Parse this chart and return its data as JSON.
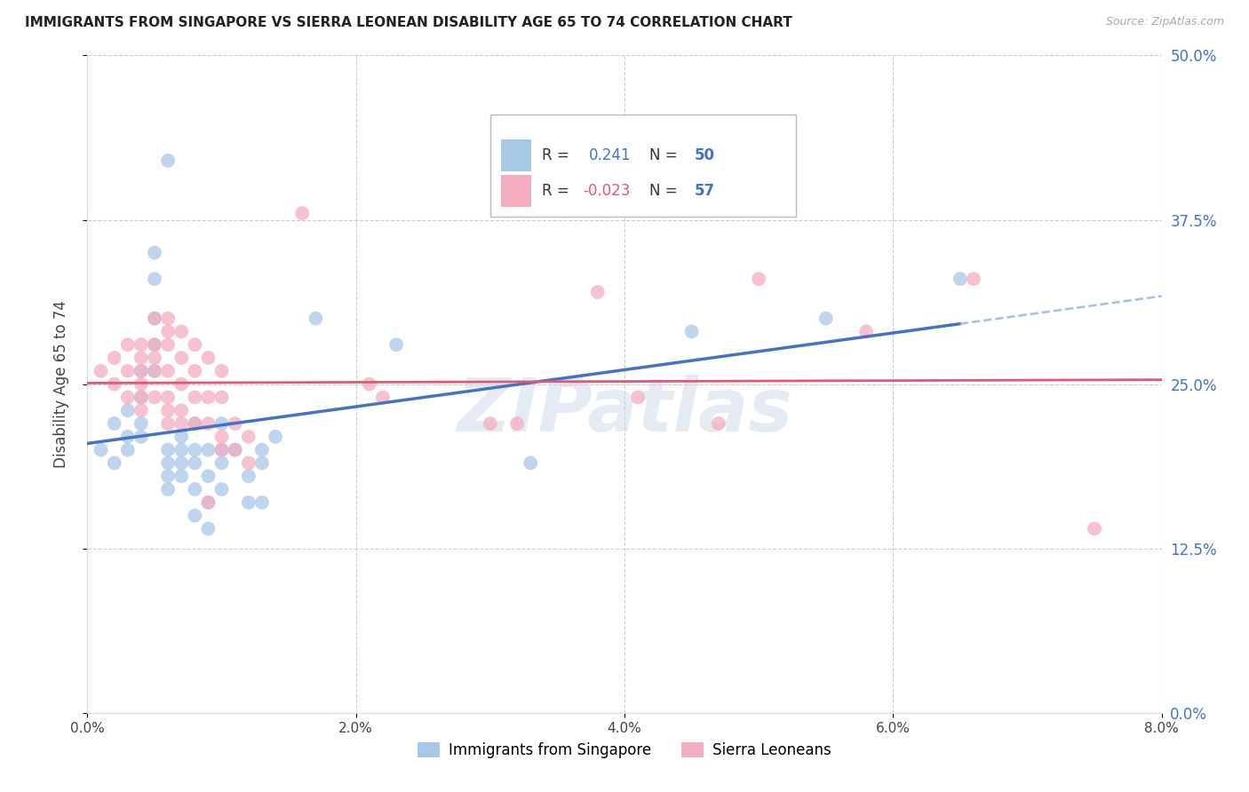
{
  "title": "IMMIGRANTS FROM SINGAPORE VS SIERRA LEONEAN DISABILITY AGE 65 TO 74 CORRELATION CHART",
  "source": "Source: ZipAtlas.com",
  "ylabel": "Disability Age 65 to 74",
  "xlabel_ticks": [
    "0.0%",
    "2.0%",
    "4.0%",
    "6.0%",
    "8.0%"
  ],
  "xlabel_vals": [
    0.0,
    0.02,
    0.04,
    0.06,
    0.08
  ],
  "ylabel_ticks": [
    "0.0%",
    "12.5%",
    "25.0%",
    "37.5%",
    "50.0%"
  ],
  "ylabel_vals": [
    0.0,
    0.125,
    0.25,
    0.375,
    0.5
  ],
  "xlim": [
    0.0,
    0.08
  ],
  "ylim": [
    0.0,
    0.5
  ],
  "r_blue": 0.241,
  "n_blue": 50,
  "r_pink": -0.023,
  "n_pink": 57,
  "blue_scatter": [
    [
      0.001,
      0.2
    ],
    [
      0.002,
      0.22
    ],
    [
      0.002,
      0.19
    ],
    [
      0.003,
      0.23
    ],
    [
      0.003,
      0.21
    ],
    [
      0.003,
      0.2
    ],
    [
      0.004,
      0.26
    ],
    [
      0.004,
      0.24
    ],
    [
      0.004,
      0.22
    ],
    [
      0.004,
      0.21
    ],
    [
      0.005,
      0.35
    ],
    [
      0.005,
      0.33
    ],
    [
      0.005,
      0.3
    ],
    [
      0.005,
      0.28
    ],
    [
      0.005,
      0.26
    ],
    [
      0.006,
      0.42
    ],
    [
      0.006,
      0.2
    ],
    [
      0.006,
      0.19
    ],
    [
      0.006,
      0.18
    ],
    [
      0.006,
      0.17
    ],
    [
      0.007,
      0.21
    ],
    [
      0.007,
      0.2
    ],
    [
      0.007,
      0.19
    ],
    [
      0.007,
      0.18
    ],
    [
      0.008,
      0.22
    ],
    [
      0.008,
      0.2
    ],
    [
      0.008,
      0.19
    ],
    [
      0.008,
      0.17
    ],
    [
      0.008,
      0.15
    ],
    [
      0.009,
      0.2
    ],
    [
      0.009,
      0.18
    ],
    [
      0.009,
      0.16
    ],
    [
      0.009,
      0.14
    ],
    [
      0.01,
      0.22
    ],
    [
      0.01,
      0.2
    ],
    [
      0.01,
      0.19
    ],
    [
      0.01,
      0.17
    ],
    [
      0.011,
      0.2
    ],
    [
      0.012,
      0.18
    ],
    [
      0.012,
      0.16
    ],
    [
      0.013,
      0.2
    ],
    [
      0.013,
      0.19
    ],
    [
      0.013,
      0.16
    ],
    [
      0.014,
      0.21
    ],
    [
      0.017,
      0.3
    ],
    [
      0.023,
      0.28
    ],
    [
      0.033,
      0.19
    ],
    [
      0.045,
      0.29
    ],
    [
      0.055,
      0.3
    ],
    [
      0.065,
      0.33
    ]
  ],
  "pink_scatter": [
    [
      0.001,
      0.26
    ],
    [
      0.002,
      0.27
    ],
    [
      0.002,
      0.25
    ],
    [
      0.003,
      0.28
    ],
    [
      0.003,
      0.26
    ],
    [
      0.003,
      0.24
    ],
    [
      0.004,
      0.28
    ],
    [
      0.004,
      0.27
    ],
    [
      0.004,
      0.26
    ],
    [
      0.004,
      0.25
    ],
    [
      0.004,
      0.24
    ],
    [
      0.004,
      0.23
    ],
    [
      0.005,
      0.3
    ],
    [
      0.005,
      0.28
    ],
    [
      0.005,
      0.27
    ],
    [
      0.005,
      0.26
    ],
    [
      0.005,
      0.24
    ],
    [
      0.006,
      0.3
    ],
    [
      0.006,
      0.29
    ],
    [
      0.006,
      0.28
    ],
    [
      0.006,
      0.26
    ],
    [
      0.006,
      0.24
    ],
    [
      0.006,
      0.23
    ],
    [
      0.006,
      0.22
    ],
    [
      0.007,
      0.29
    ],
    [
      0.007,
      0.27
    ],
    [
      0.007,
      0.25
    ],
    [
      0.007,
      0.23
    ],
    [
      0.007,
      0.22
    ],
    [
      0.008,
      0.28
    ],
    [
      0.008,
      0.26
    ],
    [
      0.008,
      0.24
    ],
    [
      0.008,
      0.22
    ],
    [
      0.009,
      0.27
    ],
    [
      0.009,
      0.24
    ],
    [
      0.009,
      0.22
    ],
    [
      0.009,
      0.16
    ],
    [
      0.01,
      0.26
    ],
    [
      0.01,
      0.24
    ],
    [
      0.01,
      0.21
    ],
    [
      0.01,
      0.2
    ],
    [
      0.011,
      0.22
    ],
    [
      0.011,
      0.2
    ],
    [
      0.012,
      0.21
    ],
    [
      0.012,
      0.19
    ],
    [
      0.016,
      0.38
    ],
    [
      0.021,
      0.25
    ],
    [
      0.022,
      0.24
    ],
    [
      0.03,
      0.22
    ],
    [
      0.032,
      0.22
    ],
    [
      0.038,
      0.32
    ],
    [
      0.041,
      0.24
    ],
    [
      0.047,
      0.22
    ],
    [
      0.05,
      0.33
    ],
    [
      0.058,
      0.29
    ],
    [
      0.066,
      0.33
    ],
    [
      0.075,
      0.14
    ]
  ],
  "blue_color": "#a8c8e8",
  "pink_color": "#f4aec0",
  "blue_line_color": "#4472c4",
  "pink_line_color": "#e05878",
  "blue_dash_color": "#a8c0d8",
  "watermark": "ZIPatlas",
  "background_color": "#ffffff",
  "grid_color": "#cccccc"
}
